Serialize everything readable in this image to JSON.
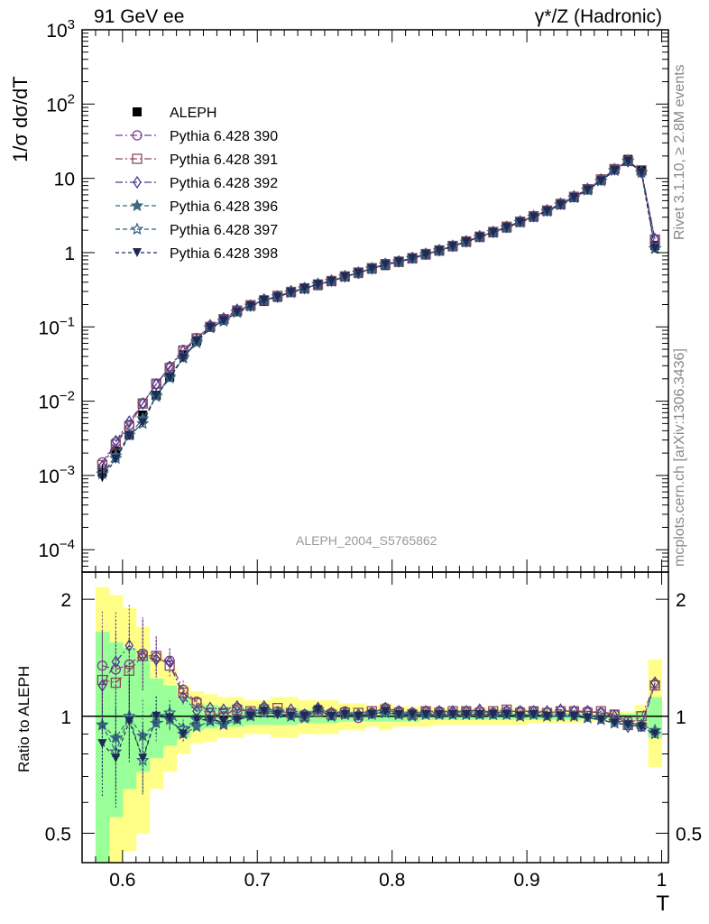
{
  "header": {
    "energy_label": "91 GeV ee",
    "process_label": "γ*/Z (Hadronic)"
  },
  "side_labels": {
    "rivet": "Rivet 3.1.10, ≥ 2.8M events",
    "site": "mcplots.cern.ch [arXiv:1306.3436]"
  },
  "chart_data": [
    {
      "type": "scatter",
      "panel": "main",
      "title": "",
      "ylabel": "1/σ  dσ/dT",
      "xlabel": "",
      "yscale": "log",
      "ylim": [
        5e-05,
        1000
      ],
      "xlim": [
        0.57,
        1.005
      ],
      "y_tick_labels": [
        "10⁻⁴",
        "10⁻³",
        "10⁻²",
        "10⁻¹",
        "1",
        "10",
        "10²",
        "10³"
      ],
      "annotation": "ALEPH_2004_S5765862",
      "legend_position": "top-left",
      "x": [
        0.585,
        0.595,
        0.605,
        0.615,
        0.625,
        0.635,
        0.645,
        0.655,
        0.665,
        0.675,
        0.685,
        0.695,
        0.705,
        0.715,
        0.725,
        0.735,
        0.745,
        0.755,
        0.765,
        0.775,
        0.785,
        0.795,
        0.805,
        0.815,
        0.825,
        0.835,
        0.845,
        0.855,
        0.865,
        0.875,
        0.885,
        0.895,
        0.905,
        0.915,
        0.925,
        0.935,
        0.945,
        0.955,
        0.965,
        0.975,
        0.985,
        0.995
      ],
      "series": [
        {
          "name": "ALEPH",
          "color": "#000000",
          "marker": "square-filled",
          "values": [
            0.0011,
            0.0021,
            0.0035,
            0.0065,
            0.012,
            0.021,
            0.042,
            0.065,
            0.1,
            0.125,
            0.16,
            0.19,
            0.22,
            0.25,
            0.29,
            0.33,
            0.36,
            0.41,
            0.47,
            0.53,
            0.6,
            0.67,
            0.74,
            0.83,
            0.93,
            1.05,
            1.2,
            1.38,
            1.6,
            1.85,
            2.15,
            2.55,
            3.0,
            3.6,
            4.4,
            5.5,
            7.0,
            9.4,
            13.2,
            18.0,
            12.8,
            1.25
          ]
        },
        {
          "name": "Pythia 6.428 390",
          "color": "#7b3f8c",
          "marker": "circle-open",
          "dash": "8,3,2,3",
          "values": [
            0.0015,
            0.0028,
            0.0048,
            0.0094,
            0.017,
            0.029,
            0.049,
            0.071,
            0.102,
            0.125,
            0.168,
            0.193,
            0.232,
            0.257,
            0.297,
            0.334,
            0.376,
            0.418,
            0.483,
            0.525,
            0.612,
            0.707,
            0.762,
            0.847,
            0.962,
            1.079,
            1.226,
            1.422,
            1.646,
            1.89,
            2.222,
            2.621,
            3.103,
            3.67,
            4.55,
            5.67,
            7.2,
            9.6,
            13.3,
            17.5,
            12.0,
            1.51
          ]
        },
        {
          "name": "Pythia 6.428 391",
          "color": "#8b4a5a",
          "marker": "square-open",
          "dash": "8,3,2,3",
          "values": [
            0.00138,
            0.0026,
            0.0046,
            0.0093,
            0.0172,
            0.028,
            0.048,
            0.07,
            0.1,
            0.127,
            0.166,
            0.196,
            0.228,
            0.262,
            0.296,
            0.33,
            0.372,
            0.414,
            0.478,
            0.54,
            0.618,
            0.7,
            0.757,
            0.842,
            0.957,
            1.072,
            1.232,
            1.415,
            1.64,
            1.898,
            2.232,
            2.609,
            3.091,
            3.686,
            4.536,
            5.64,
            7.14,
            9.68,
            13.3,
            17.1,
            12.8,
            1.5
          ]
        },
        {
          "name": "Pythia 6.428 392",
          "color": "#4b3a8c",
          "marker": "diamond-open",
          "dash": "8,3,2,3",
          "values": [
            0.00133,
            0.0029,
            0.0053,
            0.0093,
            0.0168,
            0.029,
            0.047,
            0.067,
            0.105,
            0.13,
            0.17,
            0.193,
            0.234,
            0.255,
            0.302,
            0.332,
            0.378,
            0.42,
            0.48,
            0.538,
            0.612,
            0.706,
            0.76,
            0.85,
            0.962,
            1.078,
            1.23,
            1.42,
            1.66,
            1.895,
            2.22,
            2.64,
            3.1,
            3.72,
            4.56,
            5.7,
            7.2,
            9.6,
            13.2,
            17.0,
            12.2,
            1.52
          ]
        },
        {
          "name": "Pythia 6.428 396",
          "color": "#3a6a80",
          "marker": "star-filled",
          "dash": "5,3",
          "values": [
            0.00105,
            0.00185,
            0.0035,
            0.0058,
            0.0115,
            0.0205,
            0.038,
            0.061,
            0.097,
            0.119,
            0.156,
            0.19,
            0.228,
            0.255,
            0.29,
            0.328,
            0.374,
            0.412,
            0.474,
            0.535,
            0.605,
            0.69,
            0.75,
            0.838,
            0.94,
            1.06,
            1.21,
            1.39,
            1.62,
            1.86,
            2.17,
            2.56,
            3.02,
            3.6,
            4.4,
            5.51,
            6.95,
            9.2,
            12.8,
            17.2,
            12.1,
            1.15
          ]
        },
        {
          "name": "Pythia 6.428 397",
          "color": "#2f5f7f",
          "marker": "star-open",
          "dash": "5,3",
          "values": [
            0.00105,
            0.0017,
            0.0035,
            0.005,
            0.012,
            0.0215,
            0.039,
            0.064,
            0.098,
            0.12,
            0.159,
            0.192,
            0.225,
            0.255,
            0.29,
            0.326,
            0.376,
            0.412,
            0.474,
            0.53,
            0.609,
            0.685,
            0.748,
            0.834,
            0.942,
            1.06,
            1.212,
            1.392,
            1.62,
            1.87,
            2.17,
            2.56,
            3.02,
            3.6,
            4.42,
            5.5,
            6.95,
            9.25,
            12.7,
            17.1,
            12.0,
            1.13
          ]
        },
        {
          "name": "Pythia 6.428 398",
          "color": "#1f2a55",
          "marker": "triangle-down-filled",
          "dash": "4,3",
          "values": [
            0.00094,
            0.00165,
            0.0034,
            0.0051,
            0.012,
            0.0208,
            0.038,
            0.064,
            0.098,
            0.121,
            0.157,
            0.191,
            0.227,
            0.253,
            0.29,
            0.33,
            0.373,
            0.41,
            0.473,
            0.53,
            0.608,
            0.69,
            0.75,
            0.836,
            0.94,
            1.06,
            1.212,
            1.392,
            1.62,
            1.87,
            2.17,
            2.56,
            3.02,
            3.6,
            4.42,
            5.5,
            6.95,
            9.22,
            12.65,
            17.0,
            12.0,
            1.13
          ]
        }
      ]
    },
    {
      "type": "line",
      "panel": "ratio",
      "ylabel": "Ratio to ALEPH",
      "xlabel": "T",
      "yscale": "log",
      "ylim": [
        0.42,
        2.35
      ],
      "xlim": [
        0.57,
        1.005
      ],
      "y_tick_labels": [
        "0.5",
        "1",
        "2"
      ],
      "x_tick_labels": [
        "0.6",
        "0.7",
        "0.8",
        "0.9",
        "1"
      ],
      "band_colors": {
        "outer": "#ffff88",
        "inner": "#99ff99"
      },
      "band_outer_lo": [
        0.25,
        0.35,
        0.45,
        0.5,
        0.65,
        0.72,
        0.8,
        0.85,
        0.86,
        0.88,
        0.88,
        0.9,
        0.9,
        0.88,
        0.88,
        0.9,
        0.9,
        0.9,
        0.92,
        0.92,
        0.94,
        0.92,
        0.94,
        0.94,
        0.94,
        0.95,
        0.95,
        0.95,
        0.95,
        0.95,
        0.95,
        0.95,
        0.96,
        0.96,
        0.96,
        0.96,
        0.97,
        0.97,
        0.97,
        0.97,
        0.93,
        0.74
      ],
      "band_outer_hi": [
        2.15,
        2.05,
        1.9,
        1.7,
        1.45,
        1.32,
        1.2,
        1.16,
        1.14,
        1.12,
        1.12,
        1.1,
        1.1,
        1.12,
        1.12,
        1.1,
        1.1,
        1.1,
        1.08,
        1.08,
        1.06,
        1.08,
        1.06,
        1.06,
        1.06,
        1.05,
        1.05,
        1.05,
        1.05,
        1.05,
        1.05,
        1.05,
        1.04,
        1.04,
        1.04,
        1.04,
        1.03,
        1.03,
        1.03,
        1.03,
        1.07,
        1.4
      ],
      "band_inner_lo": [
        0.35,
        0.55,
        0.65,
        0.72,
        0.78,
        0.84,
        0.88,
        0.92,
        0.93,
        0.94,
        0.94,
        0.95,
        0.95,
        0.95,
        0.95,
        0.96,
        0.96,
        0.96,
        0.97,
        0.97,
        0.97,
        0.97,
        0.97,
        0.97,
        0.98,
        0.98,
        0.98,
        0.98,
        0.98,
        0.98,
        0.98,
        0.98,
        0.98,
        0.98,
        0.98,
        0.98,
        0.985,
        0.985,
        0.985,
        0.985,
        0.97,
        0.88
      ],
      "band_inner_hi": [
        1.65,
        1.55,
        1.5,
        1.42,
        1.25,
        1.2,
        1.12,
        1.08,
        1.07,
        1.06,
        1.06,
        1.05,
        1.05,
        1.05,
        1.05,
        1.04,
        1.04,
        1.04,
        1.03,
        1.03,
        1.03,
        1.03,
        1.03,
        1.03,
        1.02,
        1.02,
        1.02,
        1.02,
        1.02,
        1.02,
        1.02,
        1.02,
        1.02,
        1.02,
        1.02,
        1.02,
        1.015,
        1.015,
        1.015,
        1.015,
        1.03,
        1.12
      ],
      "series": [
        {
          "name": "Pythia 6.428 390",
          "values": [
            1.35,
            1.32,
            1.36,
            1.45,
            1.42,
            1.39,
            1.17,
            1.09,
            1.02,
            1.0,
            1.05,
            1.02,
            1.05,
            1.03,
            1.02,
            1.01,
            1.04,
            1.02,
            1.03,
            0.99,
            1.02,
            1.05,
            1.03,
            1.02,
            1.03,
            1.03,
            1.02,
            1.03,
            1.03,
            1.02,
            1.03,
            1.03,
            1.03,
            1.02,
            1.03,
            1.03,
            1.03,
            1.02,
            1.01,
            0.97,
            0.94,
            1.21
          ]
        },
        {
          "name": "Pythia 6.428 391",
          "values": [
            1.24,
            1.22,
            1.31,
            1.43,
            1.43,
            1.35,
            1.15,
            1.08,
            1.0,
            1.02,
            1.04,
            1.03,
            1.04,
            1.05,
            1.02,
            1.0,
            1.03,
            1.01,
            1.02,
            1.02,
            1.03,
            1.04,
            1.02,
            1.01,
            1.03,
            1.02,
            1.03,
            1.03,
            1.02,
            1.03,
            1.04,
            1.02,
            1.03,
            1.02,
            1.03,
            1.03,
            1.02,
            1.03,
            1.01,
            0.95,
            1.0,
            1.2
          ]
        },
        {
          "name": "Pythia 6.428 392",
          "values": [
            1.2,
            1.38,
            1.52,
            1.43,
            1.4,
            1.38,
            1.12,
            1.03,
            1.05,
            1.04,
            1.06,
            1.02,
            1.06,
            1.02,
            1.04,
            1.01,
            1.05,
            1.02,
            1.02,
            1.01,
            1.02,
            1.05,
            1.03,
            1.02,
            1.03,
            1.03,
            1.03,
            1.03,
            1.04,
            1.02,
            1.03,
            1.03,
            1.03,
            1.03,
            1.04,
            1.03,
            1.03,
            1.02,
            1.0,
            0.94,
            0.95,
            1.22
          ]
        },
        {
          "name": "Pythia 6.428 396",
          "values": [
            0.95,
            0.88,
            0.99,
            0.89,
            0.96,
            0.98,
            0.9,
            0.94,
            0.97,
            0.95,
            0.98,
            1.0,
            1.04,
            1.02,
            1.0,
            0.99,
            1.04,
            1.0,
            1.01,
            1.01,
            1.01,
            1.03,
            1.01,
            1.01,
            1.01,
            1.01,
            1.01,
            1.01,
            1.01,
            1.01,
            1.01,
            1.0,
            1.01,
            1.0,
            1.0,
            1.0,
            0.99,
            0.98,
            0.97,
            0.96,
            0.95,
            0.92
          ]
        },
        {
          "name": "Pythia 6.428 397",
          "values": [
            0.95,
            0.81,
            1.0,
            0.77,
            1.0,
            1.02,
            0.93,
            0.98,
            0.98,
            0.96,
            0.99,
            1.01,
            1.02,
            1.02,
            1.0,
            0.99,
            1.04,
            1.0,
            1.01,
            1.0,
            1.02,
            1.02,
            1.01,
            1.0,
            1.01,
            1.01,
            1.01,
            1.01,
            1.01,
            1.01,
            1.01,
            1.0,
            1.01,
            1.0,
            1.0,
            1.0,
            0.99,
            0.98,
            0.96,
            0.95,
            0.94,
            0.9
          ]
        },
        {
          "name": "Pythia 6.428 398",
          "values": [
            0.85,
            0.78,
            0.97,
            0.78,
            1.0,
            0.99,
            0.9,
            0.98,
            0.98,
            0.97,
            0.98,
            1.0,
            1.03,
            1.01,
            1.0,
            1.0,
            1.04,
            1.0,
            1.01,
            1.0,
            1.01,
            1.03,
            1.01,
            1.01,
            1.01,
            1.01,
            1.01,
            1.01,
            1.01,
            1.01,
            1.01,
            1.0,
            1.01,
            1.0,
            1.0,
            1.0,
            0.99,
            0.98,
            0.96,
            0.95,
            0.94,
            0.9
          ]
        }
      ]
    }
  ]
}
